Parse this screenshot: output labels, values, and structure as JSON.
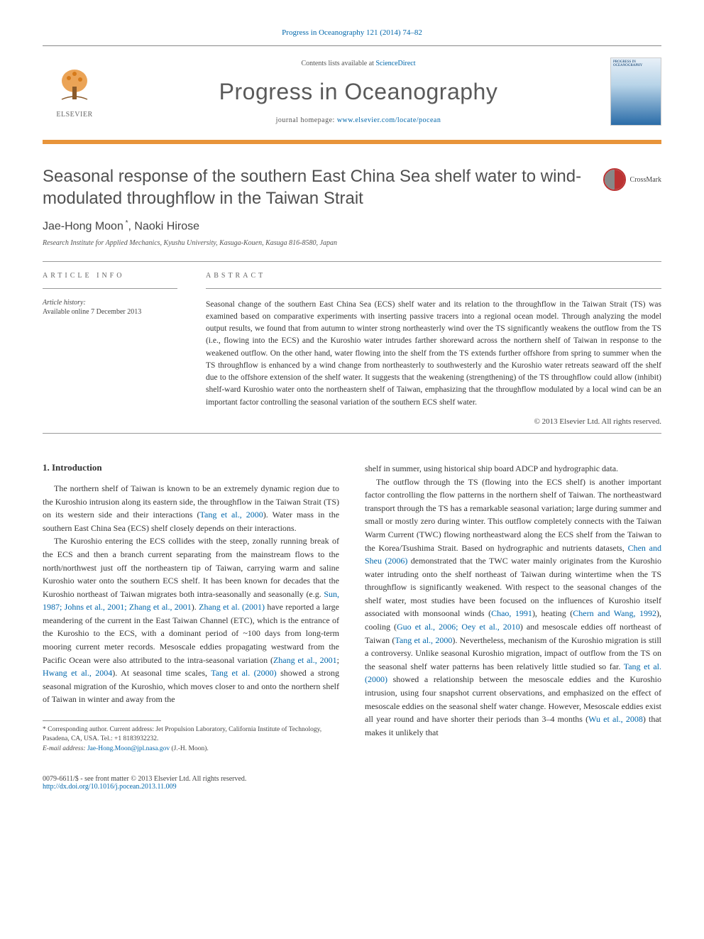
{
  "header": {
    "citation": "Progress in Oceanography 121 (2014) 74–82",
    "contents_prefix": "Contents lists available at ",
    "contents_link": "ScienceDirect",
    "journal_title": "Progress in Oceanography",
    "homepage_prefix": "journal homepage: ",
    "homepage_url": "www.elsevier.com/locate/pocean",
    "elsevier_label": "ELSEVIER",
    "cover_text": "PROGRESS IN OCEANOGRAPHY",
    "colors": {
      "orange_bar": "#e8943a",
      "link": "#0066aa",
      "title_gray": "#5a5a5a"
    }
  },
  "article": {
    "title": "Seasonal response of the southern East China Sea shelf water to wind-modulated throughflow in the Taiwan Strait",
    "crossmark_label": "CrossMark",
    "authors_html": "Jae-Hong Moon *, Naoki Hirose",
    "affiliation": "Research Institute for Applied Mechanics, Kyushu University, Kasuga-Kouen, Kasuga 816-8580, Japan"
  },
  "info": {
    "section_label": "ARTICLE INFO",
    "history_label": "Article history:",
    "history_text": "Available online 7 December 2013"
  },
  "abstract": {
    "section_label": "ABSTRACT",
    "text": "Seasonal change of the southern East China Sea (ECS) shelf water and its relation to the throughflow in the Taiwan Strait (TS) was examined based on comparative experiments with inserting passive tracers into a regional ocean model. Through analyzing the model output results, we found that from autumn to winter strong northeasterly wind over the TS significantly weakens the outflow from the TS (i.e., flowing into the ECS) and the Kuroshio water intrudes farther shoreward across the northern shelf of Taiwan in response to the weakened outflow. On the other hand, water flowing into the shelf from the TS extends further offshore from spring to summer when the TS throughflow is enhanced by a wind change from northeasterly to southwesterly and the Kuroshio water retreats seaward off the shelf due to the offshore extension of the shelf water. It suggests that the weakening (strengthening) of the TS throughflow could allow (inhibit) shelf-ward Kuroshio water onto the northeastern shelf of Taiwan, emphasizing that the throughflow modulated by a local wind can be an important factor controlling the seasonal variation of the southern ECS shelf water.",
    "copyright": "© 2013 Elsevier Ltd. All rights reserved."
  },
  "body": {
    "heading": "1. Introduction",
    "left_paragraphs": [
      "The northern shelf of Taiwan is known to be an extremely dynamic region due to the Kuroshio intrusion along its eastern side, the throughflow in the Taiwan Strait (TS) on its western side and their interactions (<a class='ref' href='#'>Tang et al., 2000</a>). Water mass in the southern East China Sea (ECS) shelf closely depends on their interactions.",
      "The Kuroshio entering the ECS collides with the steep, zonally running break of the ECS and then a branch current separating from the mainstream flows to the north/northwest just off the northeastern tip of Taiwan, carrying warm and saline Kuroshio water onto the southern ECS shelf. It has been known for decades that the Kuroshio northeast of Taiwan migrates both intra-seasonally and seasonally (e.g. <a class='ref' href='#'>Sun, 1987; Johns et al., 2001; Zhang et al., 2001</a>). <a class='ref' href='#'>Zhang et al. (2001)</a> have reported a large meandering of the current in the East Taiwan Channel (ETC), which is the entrance of the Kuroshio to the ECS, with a dominant period of ~100 days from long-term mooring current meter records. Mesoscale eddies propagating westward from the Pacific Ocean were also attributed to the intra-seasonal variation (<a class='ref' href='#'>Zhang et al., 2001</a>; <a class='ref' href='#'>Hwang et al., 2004</a>). At seasonal time scales, <a class='ref' href='#'>Tang et al. (2000)</a> showed a strong seasonal migration of the Kuroshio, which moves closer to and onto the northern shelf of Taiwan in winter and away from the"
    ],
    "right_paragraphs": [
      "shelf in summer, using historical ship board ADCP and hydrographic data.",
      "The outflow through the TS (flowing into the ECS shelf) is another important factor controlling the flow patterns in the northern shelf of Taiwan. The northeastward transport through the TS has a remarkable seasonal variation; large during summer and small or mostly zero during winter. This outflow completely connects with the Taiwan Warm Current (TWC) flowing northeastward along the ECS shelf from the Taiwan to the Korea/Tsushima Strait. Based on hydrographic and nutrients datasets, <a class='ref' href='#'>Chen and Sheu (2006)</a> demonstrated that the TWC water mainly originates from the Kuroshio water intruding onto the shelf northeast of Taiwan during wintertime when the TS throughflow is significantly weakened. With respect to the seasonal changes of the shelf water, most studies have been focused on the influences of Kuroshio itself associated with monsoonal winds (<a class='ref' href='#'>Chao, 1991</a>), heating (<a class='ref' href='#'>Chern and Wang, 1992</a>), cooling (<a class='ref' href='#'>Guo et al., 2006; Oey et al., 2010</a>) and mesoscale eddies off northeast of Taiwan (<a class='ref' href='#'>Tang et al., 2000</a>). Nevertheless, mechanism of the Kuroshio migration is still a controversy. Unlike seasonal Kuroshio migration, impact of outflow from the TS on the seasonal shelf water patterns has been relatively little studied so far. <a class='ref' href='#'>Tang et al. (2000)</a> showed a relationship between the mesoscale eddies and the Kuroshio intrusion, using four snapshot current observations, and emphasized on the effect of mesoscale eddies on the seasonal shelf water change. However, Mesoscale eddies exist all year round and have shorter their periods than 3–4 months (<a class='ref' href='#'>Wu et al., 2008</a>) that makes it unlikely that"
    ]
  },
  "footnote": {
    "corr_prefix": "* Corresponding author. Current address: Jet Propulsion Laboratory, California Institute of Technology, Pasadena, CA, USA. Tel.: +1 8183932232.",
    "email_label": "E-mail address: ",
    "email": "Jae-Hong.Moon@jpl.nasa.gov",
    "email_suffix": " (J.-H. Moon)."
  },
  "footer": {
    "left_line1": "0079-6611/$ - see front matter © 2013 Elsevier Ltd. All rights reserved.",
    "doi": "http://dx.doi.org/10.1016/j.pocean.2013.11.009"
  }
}
